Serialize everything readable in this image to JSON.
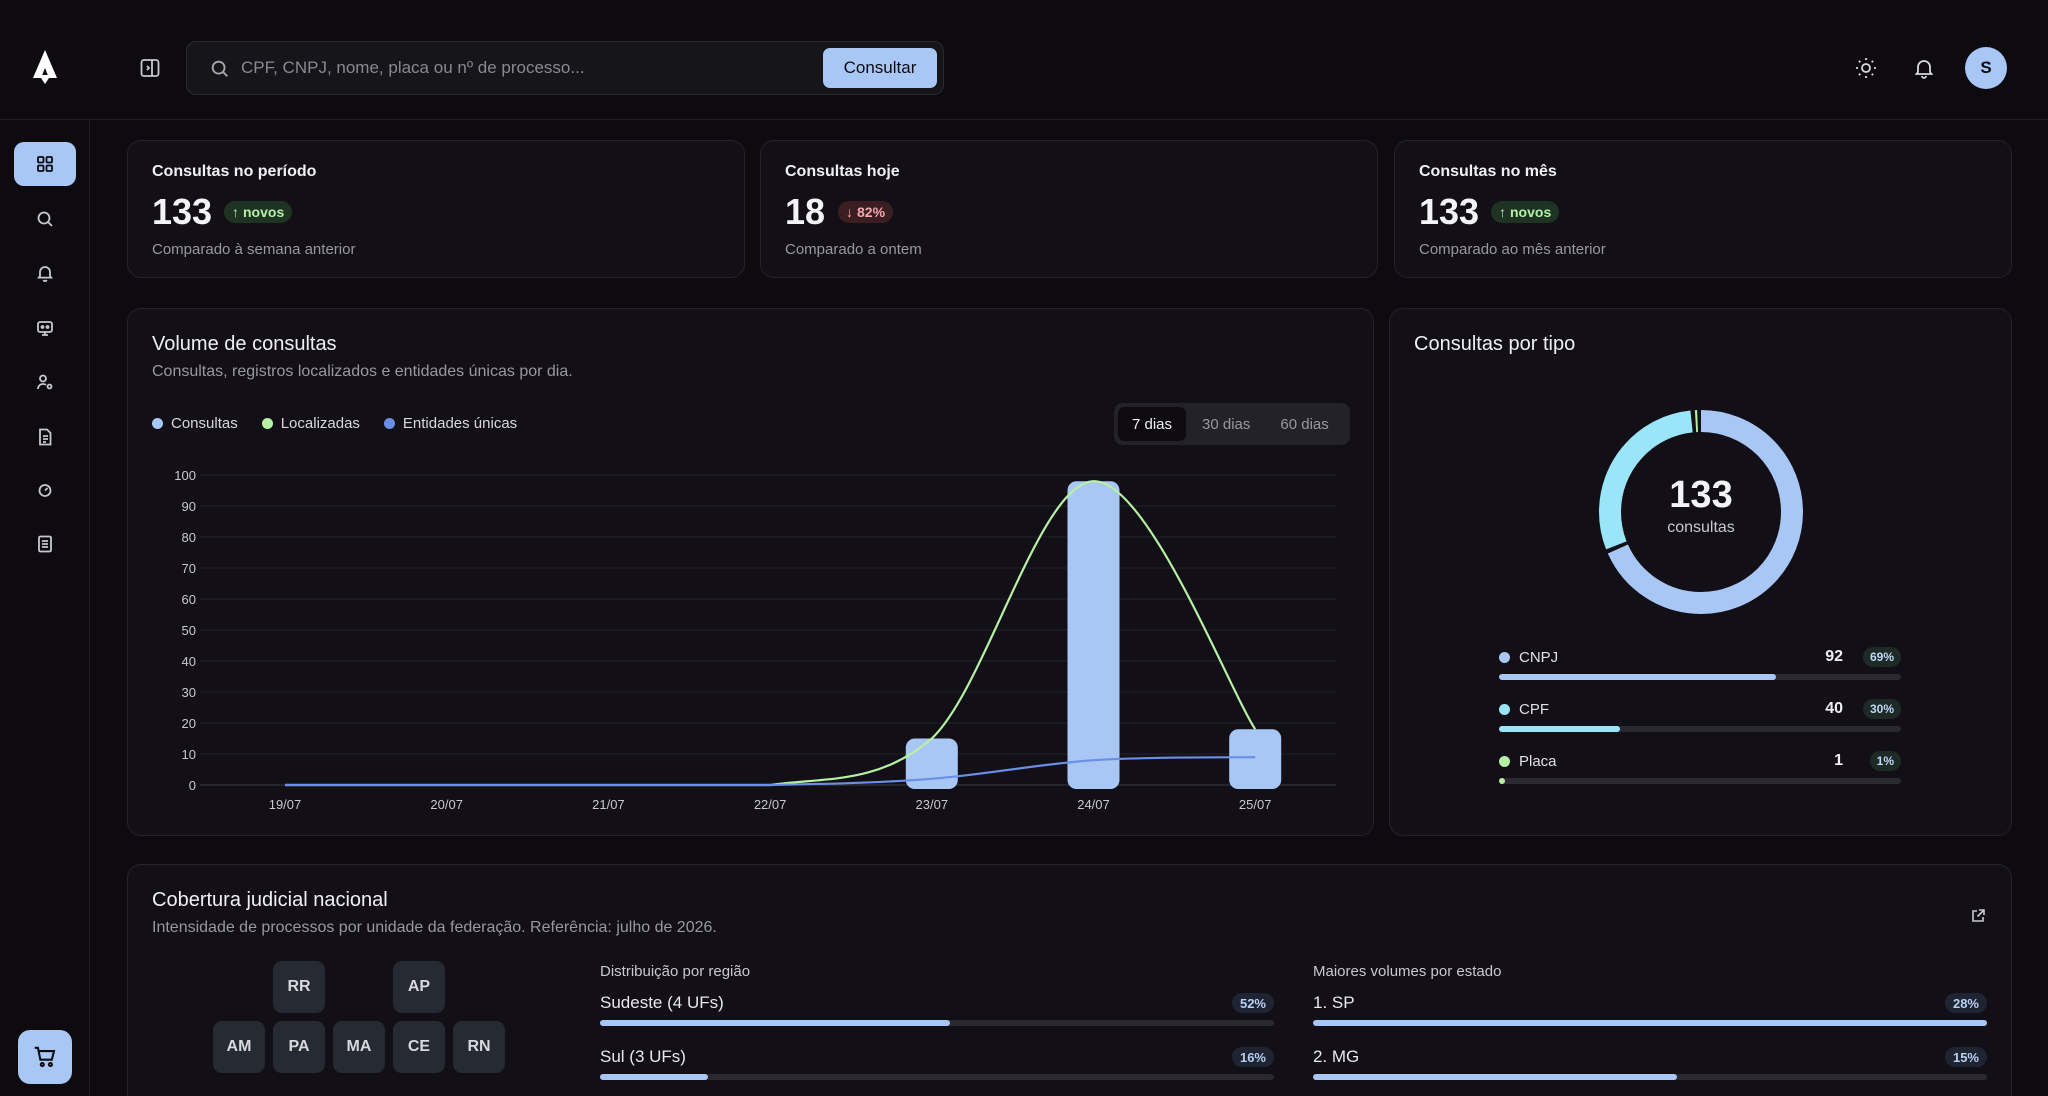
{
  "header": {
    "search_placeholder": "CPF, CNPJ, nome, placa ou nº de processo...",
    "search_button": "Consultar",
    "avatar_initial": "S"
  },
  "stats": [
    {
      "title": "Consultas no período",
      "value": "133",
      "badge": "novos",
      "badge_dir": "up",
      "sub": "Comparado à semana anterior"
    },
    {
      "title": "Consultas hoje",
      "value": "18",
      "badge": "82%",
      "badge_dir": "down",
      "sub": "Comparado a ontem"
    },
    {
      "title": "Consultas no mês",
      "value": "133",
      "badge": "novos",
      "badge_dir": "up",
      "sub": "Comparado ao mês anterior"
    }
  ],
  "volume": {
    "title": "Volume de consultas",
    "subtitle": "Consultas, registros localizados e entidades únicas por dia.",
    "legend": [
      "Consultas",
      "Localizadas",
      "Entidades únicas"
    ],
    "ranges": [
      "7 dias",
      "30 dias",
      "60 dias"
    ],
    "active_range": "7 dias"
  },
  "chart_data": {
    "type": "bar",
    "categories": [
      "19/07",
      "20/07",
      "21/07",
      "22/07",
      "23/07",
      "24/07",
      "25/07"
    ],
    "ylim": [
      0,
      100
    ],
    "yticks": [
      0,
      10,
      20,
      30,
      40,
      50,
      60,
      70,
      80,
      90,
      100
    ],
    "series": [
      {
        "name": "Consultas",
        "kind": "bar",
        "color": "#a9c7f5",
        "values": [
          0,
          0,
          0,
          0,
          15,
          98,
          18
        ]
      },
      {
        "name": "Localizadas",
        "kind": "line",
        "color": "#b6f0a4",
        "values": [
          0,
          0,
          0,
          0,
          15,
          98,
          18
        ]
      },
      {
        "name": "Entidades únicas",
        "kind": "line",
        "color": "#6b8fe6",
        "values": [
          0,
          0,
          0,
          0,
          2,
          8,
          9
        ]
      }
    ]
  },
  "by_type": {
    "title": "Consultas por tipo",
    "total": "133",
    "total_label": "consultas",
    "items": [
      {
        "name": "CNPJ",
        "count": "92",
        "pct": "69%",
        "share": 0.69,
        "color": "#a9c7f5"
      },
      {
        "name": "CPF",
        "count": "40",
        "pct": "30%",
        "share": 0.3,
        "color": "#9ae6f8"
      },
      {
        "name": "Placa",
        "count": "1",
        "pct": "1%",
        "share": 0.01,
        "color": "#b6f0a4"
      }
    ]
  },
  "coverage": {
    "title": "Cobertura judicial nacional",
    "subtitle": "Intensidade de processos por unidade da federação. Referência: julho de 2026.",
    "ufs_row1": [
      "RR",
      "AP"
    ],
    "ufs_row2": [
      "AM",
      "PA",
      "MA",
      "CE",
      "RN"
    ],
    "region_label": "Distribuição por região",
    "regions": [
      {
        "name": "Sudeste (4 UFs)",
        "pct": "52%",
        "share": 0.52
      },
      {
        "name": "Sul (3 UFs)",
        "pct": "16%",
        "share": 0.16
      }
    ],
    "state_label": "Maiores volumes por estado",
    "states": [
      {
        "name": "1. SP",
        "pct": "28%",
        "share": 1.0
      },
      {
        "name": "2. MG",
        "pct": "15%",
        "share": 0.54
      }
    ]
  },
  "colors": {
    "accent": "#a9c7f5",
    "green": "#b6f0a4",
    "cyan": "#9ae6f8",
    "blue": "#6b8fe6"
  }
}
